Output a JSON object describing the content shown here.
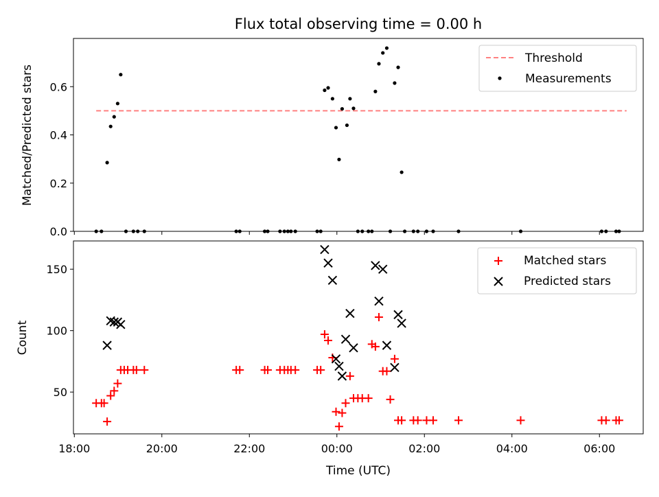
{
  "chart_data": [
    {
      "type": "scatter",
      "title": "Flux total observing time = 0.00 h",
      "xlabel": "",
      "ylabel": "Matched/Predicted stars",
      "ylim": [
        0,
        0.8
      ],
      "yticks": [
        0.0,
        0.2,
        0.4,
        0.6
      ],
      "ytick_labels": [
        "0.0",
        "0.2",
        "0.4",
        "0.6"
      ],
      "xlim": [
        17.98,
        31.0
      ],
      "legend_placement": "top-right",
      "threshold": {
        "name": "Threshold",
        "value": 0.5,
        "x_range": [
          18.5,
          30.62
        ],
        "color": "#ff8080"
      },
      "series": [
        {
          "name": "Measurements",
          "color": "#000000",
          "marker": "dot",
          "points": [
            [
              18.5,
              0
            ],
            [
              18.62,
              0
            ],
            [
              18.75,
              0.285
            ],
            [
              18.83,
              0.435
            ],
            [
              18.91,
              0.475
            ],
            [
              18.99,
              0.53
            ],
            [
              19.06,
              0.65
            ],
            [
              19.18,
              0
            ],
            [
              19.35,
              0
            ],
            [
              19.45,
              0
            ],
            [
              19.6,
              0
            ],
            [
              21.7,
              0
            ],
            [
              21.78,
              0
            ],
            [
              22.35,
              0
            ],
            [
              22.42,
              0
            ],
            [
              22.7,
              0
            ],
            [
              22.8,
              0
            ],
            [
              22.88,
              0
            ],
            [
              22.95,
              0
            ],
            [
              23.05,
              0
            ],
            [
              23.55,
              0
            ],
            [
              23.63,
              0
            ],
            [
              23.72,
              0.585
            ],
            [
              23.8,
              0.595
            ],
            [
              23.9,
              0.55
            ],
            [
              23.98,
              0.43
            ],
            [
              24.05,
              0.298
            ],
            [
              24.12,
              0.508
            ],
            [
              24.23,
              0.44
            ],
            [
              24.3,
              0.55
            ],
            [
              24.38,
              0.51
            ],
            [
              24.48,
              0
            ],
            [
              24.58,
              0
            ],
            [
              24.72,
              0
            ],
            [
              24.8,
              0
            ],
            [
              24.88,
              0.58
            ],
            [
              24.96,
              0.695
            ],
            [
              25.05,
              0.74
            ],
            [
              25.14,
              0.76
            ],
            [
              25.22,
              0
            ],
            [
              25.32,
              0.615
            ],
            [
              25.4,
              0.68
            ],
            [
              25.48,
              0.245
            ],
            [
              25.55,
              0
            ],
            [
              25.75,
              0
            ],
            [
              25.85,
              0
            ],
            [
              26.05,
              0
            ],
            [
              26.2,
              0
            ],
            [
              26.78,
              0
            ],
            [
              28.2,
              0
            ],
            [
              30.05,
              0
            ],
            [
              30.15,
              0
            ],
            [
              30.38,
              0
            ],
            [
              30.45,
              0
            ]
          ]
        }
      ]
    },
    {
      "type": "scatter",
      "title": "",
      "xlabel": "Time (UTC)",
      "ylabel": "Count",
      "ylim": [
        16,
        173
      ],
      "yticks": [
        50,
        100,
        150
      ],
      "ytick_labels": [
        "50",
        "100",
        "150"
      ],
      "xlim": [
        17.98,
        31.0
      ],
      "xticks": [
        18,
        20,
        22,
        24,
        26,
        28,
        30
      ],
      "xtick_labels": [
        "18:00",
        "20:00",
        "22:00",
        "00:00",
        "02:00",
        "04:00",
        "06:00"
      ],
      "legend_placement": "top-right",
      "series": [
        {
          "name": "Matched stars",
          "color": "#ff0000",
          "marker": "plus",
          "points": [
            [
              18.5,
              41
            ],
            [
              18.62,
              41
            ],
            [
              18.68,
              41
            ],
            [
              18.75,
              26
            ],
            [
              18.83,
              47
            ],
            [
              18.91,
              51
            ],
            [
              18.99,
              57
            ],
            [
              19.06,
              68
            ],
            [
              19.14,
              68
            ],
            [
              19.22,
              68
            ],
            [
              19.35,
              68
            ],
            [
              19.42,
              68
            ],
            [
              19.6,
              68
            ],
            [
              21.7,
              68
            ],
            [
              21.78,
              68
            ],
            [
              22.35,
              68
            ],
            [
              22.42,
              68
            ],
            [
              22.7,
              68
            ],
            [
              22.8,
              68
            ],
            [
              22.88,
              68
            ],
            [
              22.95,
              68
            ],
            [
              23.05,
              68
            ],
            [
              23.55,
              68
            ],
            [
              23.63,
              68
            ],
            [
              23.72,
              97
            ],
            [
              23.8,
              92
            ],
            [
              23.9,
              78
            ],
            [
              23.98,
              34
            ],
            [
              24.05,
              22
            ],
            [
              24.12,
              33
            ],
            [
              24.2,
              41
            ],
            [
              24.3,
              63
            ],
            [
              24.38,
              45
            ],
            [
              24.48,
              45
            ],
            [
              24.58,
              45
            ],
            [
              24.72,
              45
            ],
            [
              24.8,
              89
            ],
            [
              24.88,
              87
            ],
            [
              24.96,
              111
            ],
            [
              25.05,
              67
            ],
            [
              25.14,
              67
            ],
            [
              25.22,
              44
            ],
            [
              25.32,
              77
            ],
            [
              25.4,
              27
            ],
            [
              25.48,
              27
            ],
            [
              25.75,
              27
            ],
            [
              25.85,
              27
            ],
            [
              26.05,
              27
            ],
            [
              26.2,
              27
            ],
            [
              26.78,
              27
            ],
            [
              28.2,
              27
            ],
            [
              30.05,
              27
            ],
            [
              30.15,
              27
            ],
            [
              30.38,
              27
            ],
            [
              30.45,
              27
            ]
          ]
        },
        {
          "name": "Predicted stars",
          "color": "#000000",
          "marker": "x",
          "points": [
            [
              18.75,
              88
            ],
            [
              18.83,
              108
            ],
            [
              18.91,
              107
            ],
            [
              18.99,
              107
            ],
            [
              19.06,
              105
            ],
            [
              23.72,
              166
            ],
            [
              23.8,
              155
            ],
            [
              23.9,
              141
            ],
            [
              23.98,
              77
            ],
            [
              24.05,
              71
            ],
            [
              24.12,
              63
            ],
            [
              24.2,
              93
            ],
            [
              24.3,
              114
            ],
            [
              24.38,
              86
            ],
            [
              24.88,
              153
            ],
            [
              24.96,
              124
            ],
            [
              25.05,
              150
            ],
            [
              25.14,
              88
            ],
            [
              25.32,
              70
            ],
            [
              25.4,
              113
            ],
            [
              25.48,
              106
            ]
          ]
        }
      ]
    }
  ]
}
